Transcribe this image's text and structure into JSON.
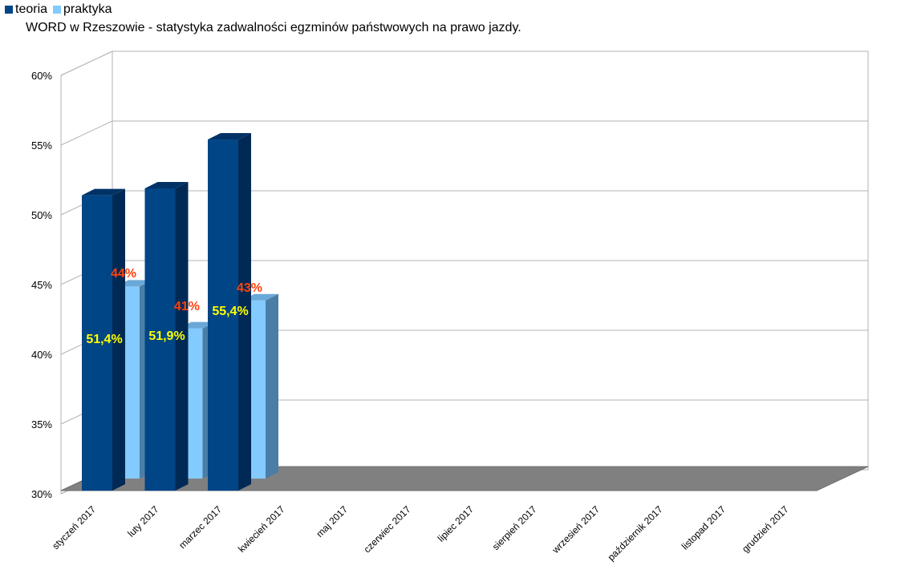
{
  "legend": [
    {
      "label": "teoria",
      "color": "#004586"
    },
    {
      "label": "praktyka",
      "color": "#83caff"
    }
  ],
  "chart_data": {
    "type": "bar",
    "title": "WORD w Rzeszowie - statystyka zadwalności egzminów państwowych na prawo jazdy.",
    "xlabel": "",
    "ylabel": "",
    "ylim": [
      30,
      60
    ],
    "ytick_step": 5,
    "ytick_labels": [
      "30%",
      "35%",
      "40%",
      "45%",
      "50%",
      "55%",
      "60%"
    ],
    "grid": true,
    "legend_position": "top-left",
    "categories": [
      "styczeń 2017",
      "luty 2017",
      "marzec 2017",
      "kwiecień 2017",
      "maj 2017",
      "czerwiec 2017",
      "lipiec 2017",
      "sierpień 2017",
      "wrzesień 2017",
      "październik 2017",
      "listopad 2017",
      "grudzień 2017"
    ],
    "series": [
      {
        "name": "teoria",
        "color": "#004586",
        "label_color": "#ffff00",
        "values": [
          51.4,
          51.9,
          55.4,
          null,
          null,
          null,
          null,
          null,
          null,
          null,
          null,
          null
        ],
        "labels": [
          "51,4%",
          "51,9%",
          "55,4%",
          "",
          "",
          "",
          "",
          "",
          "",
          "",
          "",
          ""
        ]
      },
      {
        "name": "praktyka",
        "color": "#83caff",
        "label_color": "#ff420e",
        "values": [
          44,
          41,
          43,
          null,
          null,
          null,
          null,
          null,
          null,
          null,
          null,
          null
        ],
        "labels": [
          "44%",
          "41%",
          "43%",
          "",
          "",
          "",
          "",
          "",
          "",
          "",
          "",
          ""
        ]
      }
    ]
  }
}
